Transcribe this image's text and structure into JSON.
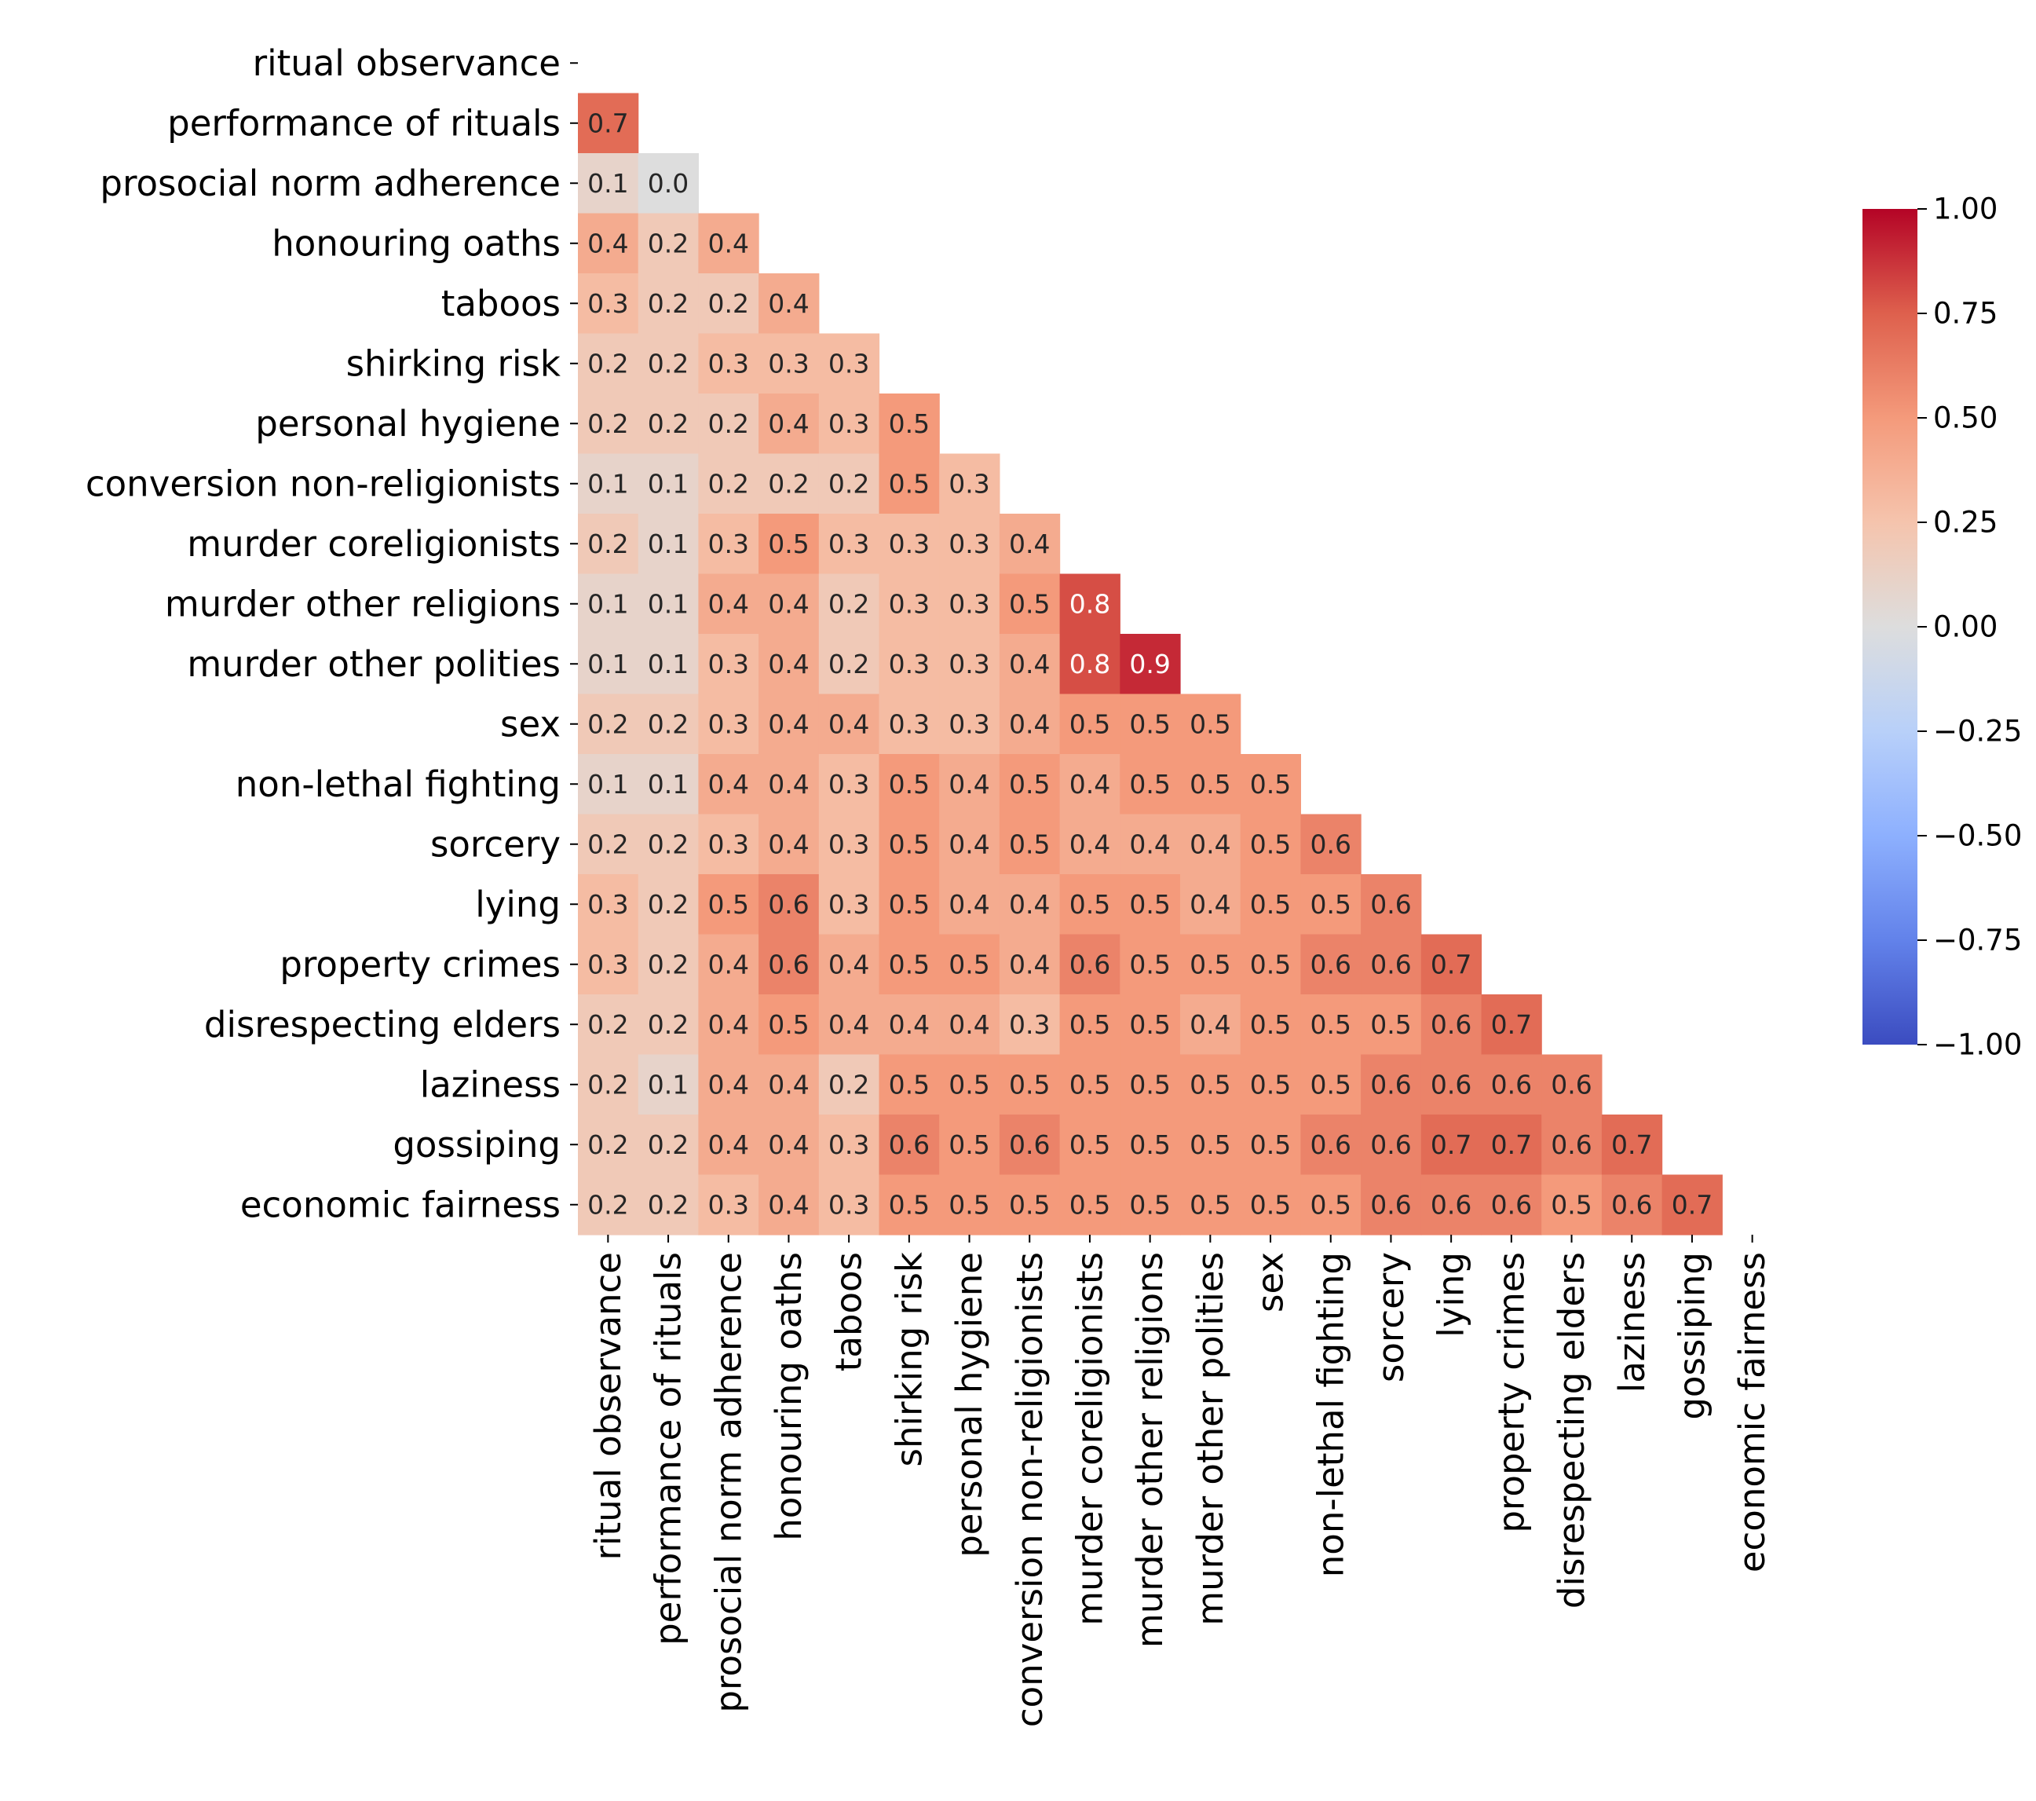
{
  "chart_data": {
    "type": "heatmap",
    "subtype": "lower-triangular correlation matrix",
    "colormap": "coolwarm",
    "title": "",
    "xlabel": "",
    "ylabel": "",
    "labels": [
      "ritual observance",
      "performance of rituals",
      "prosocial norm adherence",
      "honouring oaths",
      "taboos",
      "shirking risk",
      "personal hygiene",
      "conversion non-religionists",
      "murder coreligionists",
      "murder other religions",
      "murder other polities",
      "sex",
      "non-lethal fighting",
      "sorcery",
      "lying",
      "property crimes",
      "disrespecting elders",
      "laziness",
      "gossiping",
      "economic fairness"
    ],
    "values": [
      [],
      [
        0.7
      ],
      [
        0.1,
        0.0
      ],
      [
        0.4,
        0.2,
        0.4
      ],
      [
        0.3,
        0.2,
        0.2,
        0.4
      ],
      [
        0.2,
        0.2,
        0.3,
        0.3,
        0.3
      ],
      [
        0.2,
        0.2,
        0.2,
        0.4,
        0.3,
        0.5
      ],
      [
        0.1,
        0.1,
        0.2,
        0.2,
        0.2,
        0.5,
        0.3
      ],
      [
        0.2,
        0.1,
        0.3,
        0.5,
        0.3,
        0.3,
        0.3,
        0.4
      ],
      [
        0.1,
        0.1,
        0.4,
        0.4,
        0.2,
        0.3,
        0.3,
        0.5,
        0.8
      ],
      [
        0.1,
        0.1,
        0.3,
        0.4,
        0.2,
        0.3,
        0.3,
        0.4,
        0.8,
        0.9
      ],
      [
        0.2,
        0.2,
        0.3,
        0.4,
        0.4,
        0.3,
        0.3,
        0.4,
        0.5,
        0.5,
        0.5
      ],
      [
        0.1,
        0.1,
        0.4,
        0.4,
        0.3,
        0.5,
        0.4,
        0.5,
        0.4,
        0.5,
        0.5,
        0.5
      ],
      [
        0.2,
        0.2,
        0.3,
        0.4,
        0.3,
        0.5,
        0.4,
        0.5,
        0.4,
        0.4,
        0.4,
        0.5,
        0.6
      ],
      [
        0.3,
        0.2,
        0.5,
        0.6,
        0.3,
        0.5,
        0.4,
        0.4,
        0.5,
        0.5,
        0.4,
        0.5,
        0.5,
        0.6
      ],
      [
        0.3,
        0.2,
        0.4,
        0.6,
        0.4,
        0.5,
        0.5,
        0.4,
        0.6,
        0.5,
        0.5,
        0.5,
        0.6,
        0.6,
        0.7
      ],
      [
        0.2,
        0.2,
        0.4,
        0.5,
        0.4,
        0.4,
        0.4,
        0.3,
        0.5,
        0.5,
        0.4,
        0.5,
        0.5,
        0.5,
        0.6,
        0.7
      ],
      [
        0.2,
        0.1,
        0.4,
        0.4,
        0.2,
        0.5,
        0.5,
        0.5,
        0.5,
        0.5,
        0.5,
        0.5,
        0.5,
        0.6,
        0.6,
        0.6,
        0.6
      ],
      [
        0.2,
        0.2,
        0.4,
        0.4,
        0.3,
        0.6,
        0.5,
        0.6,
        0.5,
        0.5,
        0.5,
        0.5,
        0.6,
        0.6,
        0.7,
        0.7,
        0.6,
        0.7
      ],
      [
        0.2,
        0.2,
        0.3,
        0.4,
        0.3,
        0.5,
        0.5,
        0.5,
        0.5,
        0.5,
        0.5,
        0.5,
        0.5,
        0.6,
        0.6,
        0.6,
        0.5,
        0.6,
        0.7
      ]
    ],
    "vmin": -1.0,
    "vmax": 1.0,
    "colorbar": {
      "ticks": [
        "1.00",
        "0.75",
        "0.50",
        "0.25",
        "0.00",
        "−0.25",
        "−0.50",
        "−0.75",
        "−1.00"
      ],
      "tick_values": [
        1.0,
        0.75,
        0.5,
        0.25,
        0.0,
        -0.25,
        -0.5,
        -0.75,
        -1.0
      ]
    },
    "grid": false,
    "legend": "colorbar right"
  }
}
